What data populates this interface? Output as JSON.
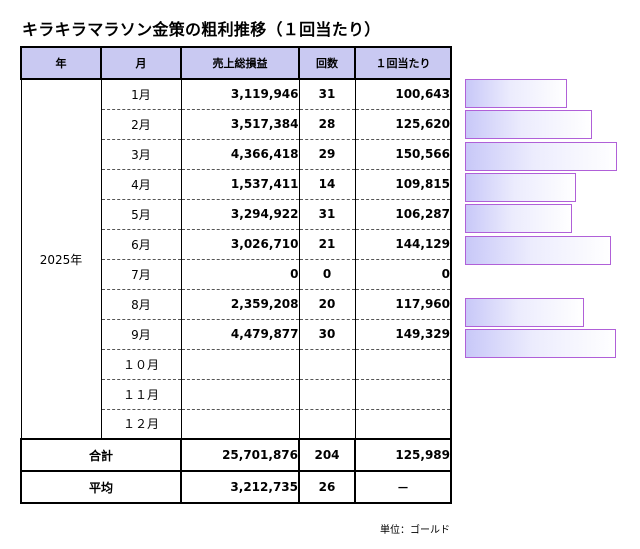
{
  "title": "キラキラマラソン金策の粗利推移（１回当たり）",
  "headers": {
    "year": "年",
    "month": "月",
    "sales": "売上総損益",
    "count": "回数",
    "per": "１回当たり"
  },
  "year": "2025年",
  "rows": [
    {
      "month": "1月",
      "sales": "3,119,946",
      "count": "31",
      "per": "100,643",
      "per_value": 100643
    },
    {
      "month": "2月",
      "sales": "3,517,384",
      "count": "28",
      "per": "125,620",
      "per_value": 125620
    },
    {
      "month": "3月",
      "sales": "4,366,418",
      "count": "29",
      "per": "150,566",
      "per_value": 150566
    },
    {
      "month": "4月",
      "sales": "1,537,411",
      "count": "14",
      "per": "109,815",
      "per_value": 109815
    },
    {
      "month": "5月",
      "sales": "3,294,922",
      "count": "31",
      "per": "106,287",
      "per_value": 106287
    },
    {
      "month": "6月",
      "sales": "3,026,710",
      "count": "21",
      "per": "144,129",
      "per_value": 144129
    },
    {
      "month": "7月",
      "sales": "0",
      "count": "0",
      "per": "0",
      "per_value": 0
    },
    {
      "month": "8月",
      "sales": "2,359,208",
      "count": "20",
      "per": "117,960",
      "per_value": 117960
    },
    {
      "month": "9月",
      "sales": "4,479,877",
      "count": "30",
      "per": "149,329",
      "per_value": 149329
    },
    {
      "month": "１０月",
      "sales": "",
      "count": "",
      "per": "",
      "per_value": null
    },
    {
      "month": "１１月",
      "sales": "",
      "count": "",
      "per": "",
      "per_value": null
    },
    {
      "month": "１２月",
      "sales": "",
      "count": "",
      "per": "",
      "per_value": null
    }
  ],
  "total": {
    "label": "合計",
    "sales": "25,701,876",
    "count": "204",
    "per": "125,989"
  },
  "average": {
    "label": "平均",
    "sales": "3,212,735",
    "count": "26",
    "per": "－"
  },
  "unit_note": "単位：ゴールド",
  "bar_colors": {
    "border": "#b060d8",
    "fill_start": "#c8c8f8",
    "fill_end": "#ffffff"
  }
}
